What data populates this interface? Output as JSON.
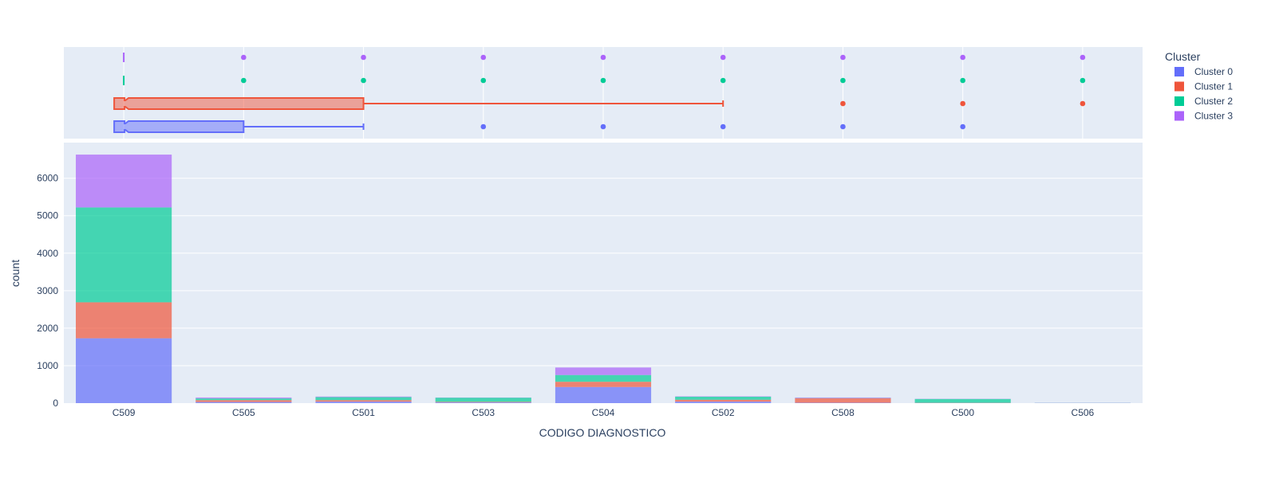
{
  "chart_data": {
    "type": "bar",
    "barmode": "stack",
    "xlabel": "CODIGO DIAGNOSTICO",
    "ylabel": "count",
    "categories": [
      "C509",
      "C505",
      "C501",
      "C503",
      "C504",
      "C502",
      "C508",
      "C500",
      "C506"
    ],
    "ylim": [
      0,
      6950
    ],
    "yticks": [
      0,
      1000,
      2000,
      3000,
      4000,
      5000,
      6000
    ],
    "grid": true,
    "legend": {
      "title": "Cluster",
      "placement": "right"
    },
    "series": [
      {
        "name": "Cluster 0",
        "color": "#636efa",
        "values": [
          1730,
          30,
          40,
          20,
          430,
          40,
          10,
          5,
          0
        ]
      },
      {
        "name": "Cluster 1",
        "color": "#ef553b",
        "values": [
          960,
          50,
          40,
          15,
          140,
          50,
          120,
          5,
          0
        ]
      },
      {
        "name": "Cluster 2",
        "color": "#00cc96",
        "values": [
          2530,
          45,
          80,
          110,
          180,
          80,
          5,
          100,
          5
        ]
      },
      {
        "name": "Cluster 3",
        "color": "#ab63fa",
        "values": [
          1410,
          25,
          15,
          5,
          200,
          10,
          15,
          5,
          5
        ]
      }
    ],
    "marginal_box": {
      "type": "box",
      "orientation": "horizontal",
      "category_order": [
        "C509",
        "C505",
        "C501",
        "C503",
        "C504",
        "C502",
        "C508",
        "C500",
        "C506"
      ],
      "rows": [
        {
          "name": "Cluster 3",
          "color": "#ab63fa",
          "q1": "C509",
          "median": "C509",
          "q3": "C509",
          "whisker_low": "C509",
          "whisker_high": "C509",
          "outliers": [
            "C505",
            "C501",
            "C503",
            "C504",
            "C502",
            "C508",
            "C500",
            "C506"
          ]
        },
        {
          "name": "Cluster 2",
          "color": "#00cc96",
          "q1": "C509",
          "median": "C509",
          "q3": "C509",
          "whisker_low": "C509",
          "whisker_high": "C509",
          "outliers": [
            "C505",
            "C501",
            "C503",
            "C504",
            "C502",
            "C508",
            "C500",
            "C506"
          ]
        },
        {
          "name": "Cluster 1",
          "color": "#ef553b",
          "q1": "C509",
          "median": "C509",
          "q3": "C501",
          "whisker_low": "C509",
          "whisker_high": "C502",
          "outliers": [
            "C508",
            "C500",
            "C506"
          ]
        },
        {
          "name": "Cluster 0",
          "color": "#636efa",
          "q1": "C509",
          "median": "C509",
          "q3": "C505",
          "whisker_low": "C509",
          "whisker_high": "C501",
          "outliers": [
            "C503",
            "C504",
            "C502",
            "C508",
            "C500"
          ]
        }
      ]
    }
  }
}
